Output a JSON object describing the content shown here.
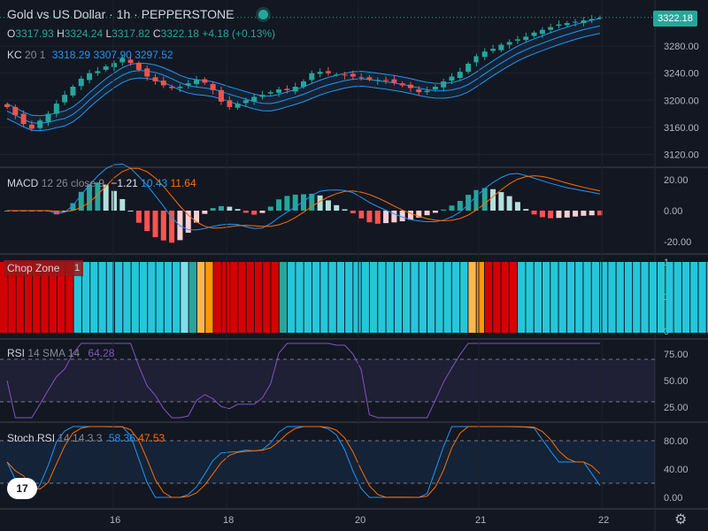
{
  "header": {
    "title": "Gold vs US Dollar · 1h · PEPPERSTONE",
    "o_label": "O",
    "o": "3317.93",
    "h_label": "H",
    "h": "3324.24",
    "l_label": "L",
    "l": "3317.82",
    "c_label": "C",
    "c": "3322.18",
    "change": "+4.18 (+0.13%)"
  },
  "kc": {
    "name": "KC",
    "params": "20 1",
    "upper": "3318.29",
    "basis": "3307.90",
    "lower": "3297.52"
  },
  "macd": {
    "name": "MACD",
    "params": "12 26 close 9",
    "hist": "−1.21",
    "macd": "10.43",
    "signal": "11.64"
  },
  "chop": {
    "name": "Chop Zone",
    "value": "1"
  },
  "rsi": {
    "name": "RSI",
    "params": "14 SMA 14",
    "value": "64.28"
  },
  "stoch": {
    "name": "Stoch RSI",
    "params": "14 14 3 3",
    "k": "58.36",
    "d": "47.53"
  },
  "price_tag": "3322.18",
  "logo": "17",
  "settings_icon": "gear-icon",
  "colors": {
    "up": "#26a69a",
    "down": "#ef5350",
    "kc": "#2196f3",
    "macd": "#2196f3",
    "signal": "#ff6d00",
    "rsi": "#7e57c2",
    "stoch_k": "#2196f3",
    "stoch_d": "#ff6d00"
  },
  "chart_data": [
    {
      "type": "candlestick",
      "title": "Gold vs US Dollar · 1h · PEPPERSTONE",
      "x_ticks": [
        "16",
        "18",
        "20",
        "21",
        "22"
      ],
      "y_ticks": [
        3120,
        3160,
        3200,
        3240,
        3280,
        3322.18
      ],
      "ylim": [
        3105,
        3335
      ],
      "close": [
        3190,
        3178,
        3165,
        3158,
        3170,
        3180,
        3195,
        3208,
        3220,
        3232,
        3240,
        3243,
        3250,
        3255,
        3262,
        3255,
        3245,
        3235,
        3228,
        3222,
        3218,
        3220,
        3225,
        3230,
        3226,
        3215,
        3198,
        3190,
        3195,
        3200,
        3205,
        3208,
        3212,
        3216,
        3215,
        3220,
        3228,
        3240,
        3242,
        3240,
        3238,
        3237,
        3235,
        3233,
        3231,
        3230,
        3229,
        3226,
        3222,
        3218,
        3212,
        3214,
        3220,
        3228,
        3235,
        3242,
        3254,
        3265,
        3272,
        3276,
        3282,
        3286,
        3290,
        3294,
        3300,
        3304,
        3308,
        3312,
        3314,
        3316,
        3318,
        3320,
        3322
      ],
      "kc_upper_end": 3318.29,
      "kc_basis_end": 3307.9,
      "kc_lower_end": 3297.52,
      "grid": true
    },
    {
      "type": "line",
      "name": "MACD",
      "y_ticks": [
        20,
        0,
        -20
      ],
      "ylim": [
        -25,
        25
      ],
      "macd_end": 10.43,
      "signal_end": 11.64,
      "hist_end": -1.21
    },
    {
      "type": "heatmap",
      "name": "Chop Zone",
      "y_ticks": [
        1,
        0
      ],
      "zones": [
        {
          "color": "#d50000",
          "count": 9
        },
        {
          "color": "#26c6da",
          "count": 13
        },
        {
          "color": "#80deea",
          "count": 1
        },
        {
          "color": "#26a69a",
          "count": 1
        },
        {
          "color": "#ffb74d",
          "count": 1
        },
        {
          "color": "#ff9800",
          "count": 1
        },
        {
          "color": "#d50000",
          "count": 8
        },
        {
          "color": "#26a69a",
          "count": 1
        },
        {
          "color": "#26c6da",
          "count": 22
        },
        {
          "color": "#ffb74d",
          "count": 1
        },
        {
          "color": "#ff9800",
          "count": 1
        },
        {
          "color": "#d50000",
          "count": 4
        },
        {
          "color": "#26c6da",
          "count": 35
        }
      ]
    },
    {
      "type": "line",
      "name": "RSI",
      "y_ticks": [
        75,
        50,
        25
      ],
      "ylim": [
        15,
        85
      ],
      "bands": [
        70,
        30
      ],
      "last": 64.28
    },
    {
      "type": "line",
      "name": "Stoch RSI",
      "y_ticks": [
        80,
        40,
        0
      ],
      "ylim": [
        -10,
        100
      ],
      "bands": [
        80,
        20
      ],
      "k_end": 58.36,
      "d_end": 47.53
    }
  ]
}
